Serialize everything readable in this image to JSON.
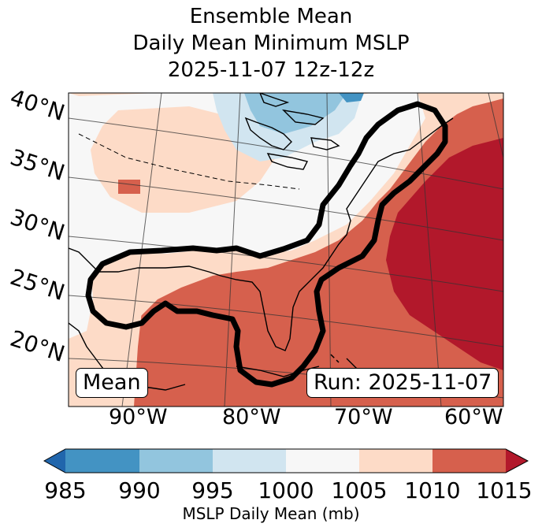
{
  "title": {
    "line1": "Ensemble Mean",
    "line2": "Daily Mean Minimum MSLP",
    "line3": "2025-11-07 12z-12z"
  },
  "lat_labels": [
    "40°N",
    "35°N",
    "30°N",
    "25°N",
    "20°N"
  ],
  "lon_labels": [
    "90°W",
    "80°W",
    "70°W",
    "60°W"
  ],
  "panel_label": "Mean",
  "run_label": "Run: 2025-11-07",
  "colorbar": {
    "label": "MSLP Daily Mean (mb)",
    "ticks": [
      "985",
      "990",
      "995",
      "1000",
      "1005",
      "1010",
      "1015"
    ],
    "colors": [
      "#2166ac",
      "#4393c3",
      "#92c5de",
      "#d1e5f0",
      "#f7f7f7",
      "#fddbc7",
      "#d6604d",
      "#b2182b"
    ]
  }
}
